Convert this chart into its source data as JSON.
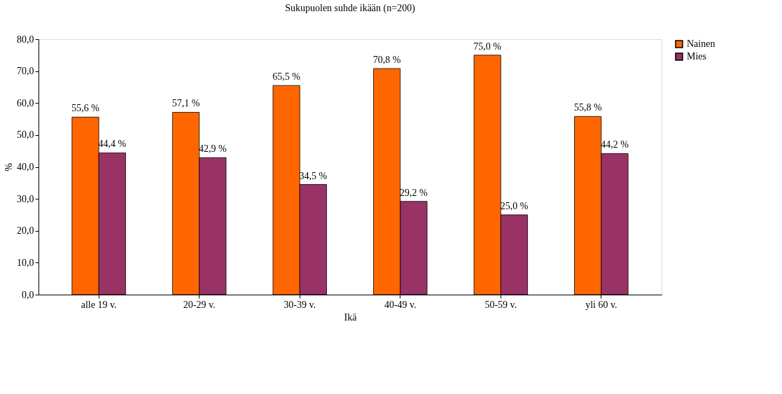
{
  "chart_data": {
    "type": "bar",
    "title": "Sukupuolen suhde ikään (n=200)",
    "xlabel": "Ikä",
    "ylabel": "%",
    "categories": [
      "alle 19 v.",
      "20-29 v.",
      "30-39 v.",
      "40-49 v.",
      "50-59 v.",
      "yli 60 v."
    ],
    "series": [
      {
        "name": "Nainen",
        "color": "#ff6600",
        "values": [
          55.6,
          57.1,
          65.5,
          70.8,
          75.0,
          55.8
        ],
        "value_labels": [
          "55,6 %",
          "57,1 %",
          "65,5 %",
          "70,8 %",
          "75,0 %",
          "55,8 %"
        ]
      },
      {
        "name": "Mies",
        "color": "#993366",
        "values": [
          44.4,
          42.9,
          34.5,
          29.2,
          25.0,
          44.2
        ],
        "value_labels": [
          "44,4 %",
          "42,9 %",
          "34,5 %",
          "29,2 %",
          "25,0 %",
          "44,2 %"
        ]
      }
    ],
    "ylim": [
      0,
      80
    ],
    "yticks": [
      {
        "value": 0,
        "label": "0,0"
      },
      {
        "value": 10,
        "label": "10,0"
      },
      {
        "value": 20,
        "label": "20,0"
      },
      {
        "value": 30,
        "label": "30,0"
      },
      {
        "value": 40,
        "label": "40,0"
      },
      {
        "value": 50,
        "label": "50,0"
      },
      {
        "value": 60,
        "label": "60,0"
      },
      {
        "value": 70,
        "label": "70,0"
      },
      {
        "value": 80,
        "label": "80,0"
      }
    ],
    "grid": false,
    "legend": "right"
  }
}
